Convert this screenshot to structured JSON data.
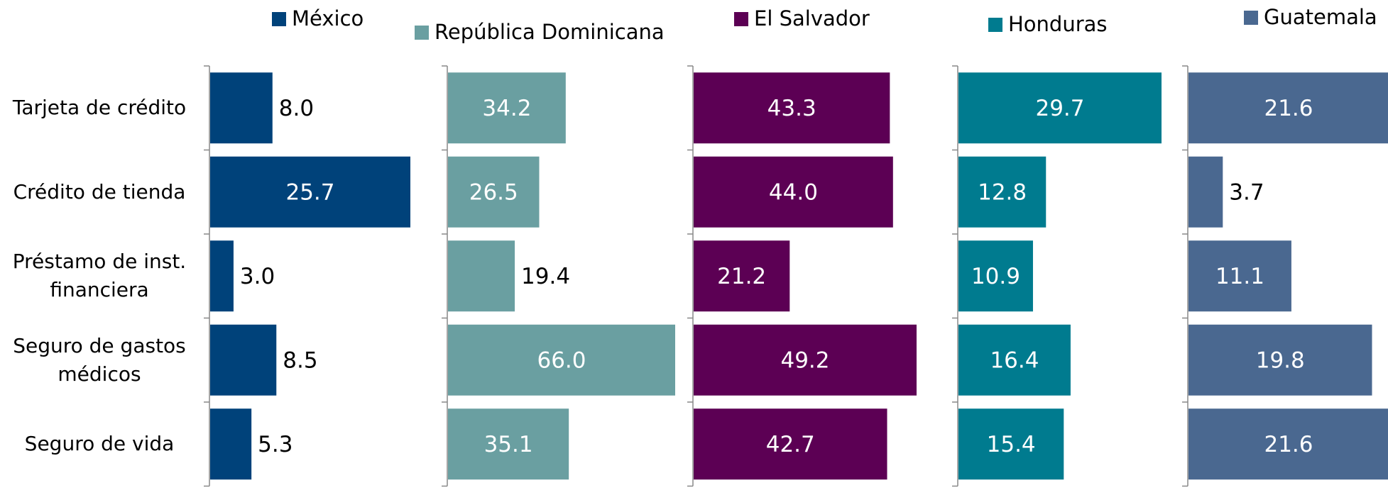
{
  "chart_data": [
    {
      "type": "bar",
      "orientation": "horizontal",
      "categories": [
        "Tarjeta de crédito",
        "Crédito de tienda",
        "Préstamo de inst. financiera",
        "Seguro de gastos médicos",
        "Seguro de vida"
      ],
      "series": [
        {
          "name": "México",
          "color": "#00427a",
          "values": [
            8.0,
            25.7,
            3.0,
            8.5,
            5.3
          ],
          "value_labels": [
            "8.0",
            "25.7",
            "3.0",
            "8.5",
            "5.3"
          ]
        }
      ]
    },
    {
      "type": "bar",
      "orientation": "horizontal",
      "series": [
        {
          "name": "República Dominicana",
          "color": "#6a9fa1",
          "values": [
            34.2,
            26.5,
            19.4,
            66.0,
            35.1
          ],
          "value_labels": [
            "34.2",
            "26.5",
            "19.4",
            "66.0",
            "35.1"
          ]
        }
      ]
    },
    {
      "type": "bar",
      "orientation": "horizontal",
      "series": [
        {
          "name": "El Salvador",
          "color": "#5c0054",
          "values": [
            43.3,
            44.0,
            21.2,
            49.2,
            42.7
          ],
          "value_labels": [
            "43.3",
            "44.0",
            "21.2",
            "49.2",
            "42.7"
          ]
        }
      ]
    },
    {
      "type": "bar",
      "orientation": "horizontal",
      "series": [
        {
          "name": "Honduras",
          "color": "#007b8f",
          "values": [
            29.7,
            12.8,
            10.9,
            16.4,
            15.4
          ],
          "value_labels": [
            "29.7",
            "12.8",
            "10.9",
            "16.4",
            "15.4"
          ]
        }
      ]
    },
    {
      "type": "bar",
      "orientation": "horizontal",
      "series": [
        {
          "name": "Guatemala",
          "color": "#4a6890",
          "values": [
            21.6,
            3.7,
            11.1,
            19.8,
            21.6
          ],
          "value_labels": [
            "21.6",
            "3.7",
            "11.1",
            "19.8",
            "21.6"
          ]
        }
      ]
    }
  ]
}
